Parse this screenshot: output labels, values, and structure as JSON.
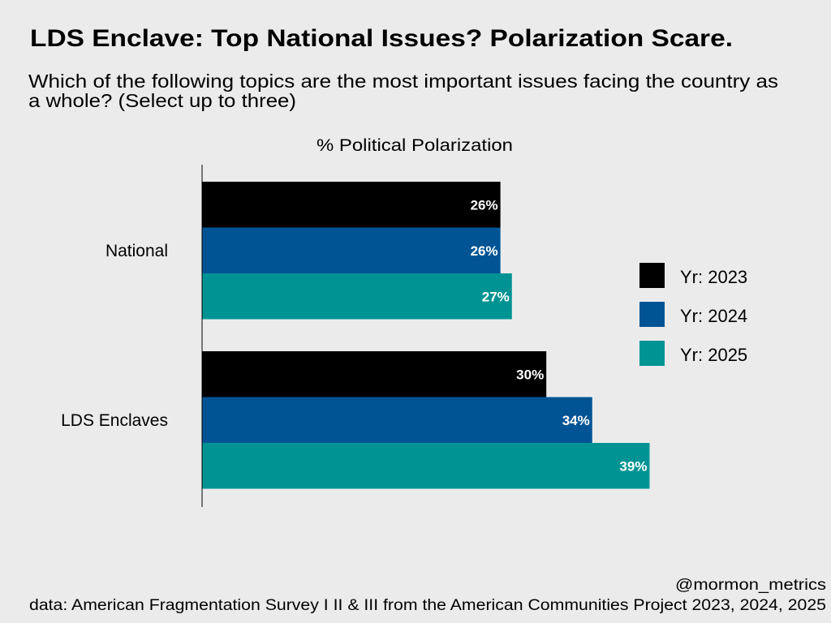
{
  "title": "LDS Enclave: Top National Issues? Polarization Scare.",
  "subtitle_line1": "Which of the following topics are the most important issues facing the country as",
  "subtitle_line2": "a whole? (Select up to three)",
  "credit": "@mormon_metrics",
  "source": "data: American Fragmentation Survey I II & III from the American Communities Project 2023, 2024, 2025",
  "chart_data": {
    "type": "bar",
    "orientation": "horizontal",
    "title": "% Political Polarization",
    "xlabel": "",
    "ylabel": "",
    "xlim": [
      0,
      45
    ],
    "grid": false,
    "legend_position": "right",
    "categories": [
      "National",
      "LDS Enclaves"
    ],
    "series": [
      {
        "name": "Yr: 2023",
        "color": "#000000",
        "values": [
          26,
          30
        ],
        "labels": [
          "26%",
          "30%"
        ]
      },
      {
        "name": "Yr: 2024",
        "color": "#005494",
        "values": [
          26,
          34
        ],
        "labels": [
          "26%",
          "34%"
        ]
      },
      {
        "name": "Yr: 2025",
        "color": "#009394",
        "values": [
          27,
          39
        ],
        "labels": [
          "27%",
          "39%"
        ]
      }
    ]
  }
}
